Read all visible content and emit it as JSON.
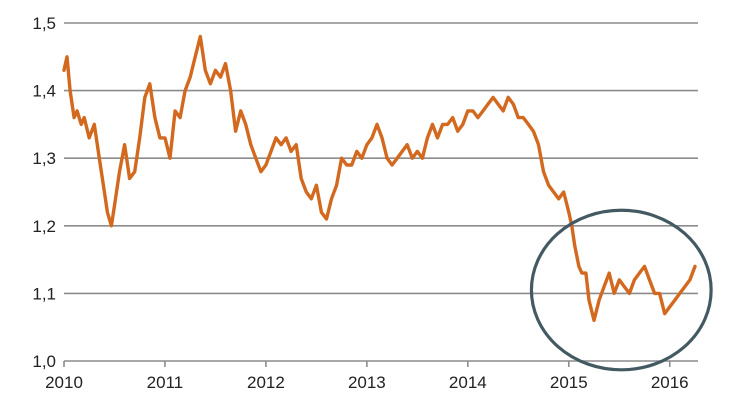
{
  "chart_data": {
    "type": "line",
    "title": "",
    "xlabel": "",
    "ylabel": "",
    "xlim": [
      2010.0,
      2016.28
    ],
    "ylim": [
      1.0,
      1.5
    ],
    "grid": true,
    "x_ticks": [
      2010,
      2011,
      2012,
      2013,
      2014,
      2015,
      2016
    ],
    "x_tick_labels": [
      "2010",
      "2011",
      "2012",
      "2013",
      "2014",
      "2015",
      "2016"
    ],
    "y_ticks": [
      1.0,
      1.1,
      1.2,
      1.3,
      1.4,
      1.5
    ],
    "y_tick_labels": [
      "1,0",
      "1,1",
      "1,2",
      "1,3",
      "1,4",
      "1,5"
    ],
    "series": [
      {
        "name": "",
        "color": "#D2691E",
        "x": [
          2010.0,
          2010.03,
          2010.06,
          2010.1,
          2010.13,
          2010.17,
          2010.2,
          2010.25,
          2010.3,
          2010.35,
          2010.4,
          2010.43,
          2010.47,
          2010.5,
          2010.55,
          2010.6,
          2010.65,
          2010.7,
          2010.75,
          2010.8,
          2010.85,
          2010.9,
          2010.95,
          2011.0,
          2011.05,
          2011.1,
          2011.15,
          2011.2,
          2011.25,
          2011.3,
          2011.35,
          2011.4,
          2011.45,
          2011.5,
          2011.55,
          2011.6,
          2011.65,
          2011.7,
          2011.75,
          2011.8,
          2011.85,
          2011.9,
          2011.95,
          2012.0,
          2012.05,
          2012.1,
          2012.15,
          2012.2,
          2012.25,
          2012.3,
          2012.35,
          2012.4,
          2012.45,
          2012.5,
          2012.55,
          2012.6,
          2012.65,
          2012.7,
          2012.75,
          2012.8,
          2012.85,
          2012.9,
          2012.95,
          2013.0,
          2013.05,
          2013.1,
          2013.15,
          2013.2,
          2013.25,
          2013.3,
          2013.35,
          2013.4,
          2013.45,
          2013.5,
          2013.55,
          2013.6,
          2013.65,
          2013.7,
          2013.75,
          2013.8,
          2013.85,
          2013.9,
          2013.95,
          2014.0,
          2014.05,
          2014.1,
          2014.15,
          2014.2,
          2014.25,
          2014.3,
          2014.35,
          2014.4,
          2014.45,
          2014.5,
          2014.55,
          2014.6,
          2014.65,
          2014.7,
          2014.75,
          2014.8,
          2014.85,
          2014.9,
          2014.95,
          2015.0,
          2015.03,
          2015.06,
          2015.1,
          2015.13,
          2015.17,
          2015.2,
          2015.25,
          2015.3,
          2015.35,
          2015.4,
          2015.45,
          2015.5,
          2015.55,
          2015.6,
          2015.65,
          2015.7,
          2015.75,
          2015.8,
          2015.85,
          2015.9,
          2015.95,
          2016.0,
          2016.05,
          2016.1,
          2016.15,
          2016.2,
          2016.25
        ],
        "y": [
          1.43,
          1.45,
          1.4,
          1.36,
          1.37,
          1.35,
          1.36,
          1.33,
          1.35,
          1.3,
          1.25,
          1.22,
          1.2,
          1.23,
          1.28,
          1.32,
          1.27,
          1.28,
          1.33,
          1.39,
          1.41,
          1.36,
          1.33,
          1.33,
          1.3,
          1.37,
          1.36,
          1.4,
          1.42,
          1.45,
          1.48,
          1.43,
          1.41,
          1.43,
          1.42,
          1.44,
          1.4,
          1.34,
          1.37,
          1.35,
          1.32,
          1.3,
          1.28,
          1.29,
          1.31,
          1.33,
          1.32,
          1.33,
          1.31,
          1.32,
          1.27,
          1.25,
          1.24,
          1.26,
          1.22,
          1.21,
          1.24,
          1.26,
          1.3,
          1.29,
          1.29,
          1.31,
          1.3,
          1.32,
          1.33,
          1.35,
          1.33,
          1.3,
          1.29,
          1.3,
          1.31,
          1.32,
          1.3,
          1.31,
          1.3,
          1.33,
          1.35,
          1.33,
          1.35,
          1.35,
          1.36,
          1.34,
          1.35,
          1.37,
          1.37,
          1.36,
          1.37,
          1.38,
          1.39,
          1.38,
          1.37,
          1.39,
          1.38,
          1.36,
          1.36,
          1.35,
          1.34,
          1.32,
          1.28,
          1.26,
          1.25,
          1.24,
          1.25,
          1.22,
          1.2,
          1.17,
          1.14,
          1.13,
          1.13,
          1.09,
          1.06,
          1.09,
          1.11,
          1.13,
          1.1,
          1.12,
          1.11,
          1.1,
          1.12,
          1.13,
          1.14,
          1.12,
          1.1,
          1.1,
          1.07,
          1.08,
          1.09,
          1.1,
          1.11,
          1.12,
          1.14
        ]
      }
    ],
    "annotation": {
      "shape": "ellipse",
      "color": "#445A63",
      "center_x": 2015.52,
      "center_y": 1.105,
      "radius_x": 0.89,
      "radius_y": 0.118
    }
  }
}
